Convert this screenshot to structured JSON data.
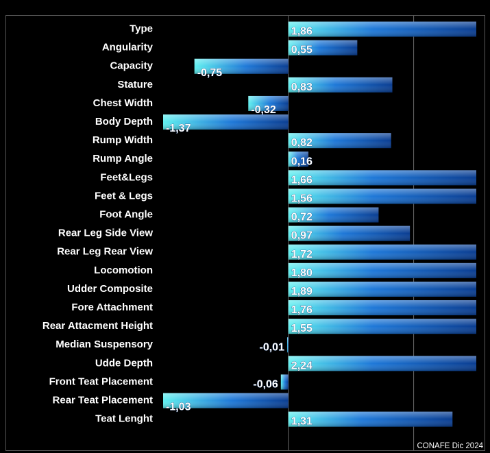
{
  "chart_data": {
    "type": "bar",
    "orientation": "horizontal",
    "categories": [
      "Type",
      "Angularity",
      "Capacity",
      "Stature",
      "Chest Width",
      "Body Depth",
      "Rump Width",
      "Rump Angle",
      "Feet&Legs",
      "Feet & Legs",
      "Foot Angle",
      "Rear Leg Side View",
      "Rear Leg Rear View",
      "Locomotion",
      "Udder Composite",
      "Fore Attachment",
      "Rear Attacment Height",
      "Median Suspensory",
      "Udde Depth",
      "Front Teat Placement",
      "Rear Teat Placement",
      "Teat Lenght"
    ],
    "values": [
      1.86,
      0.55,
      -0.75,
      0.83,
      -0.32,
      -1.37,
      0.82,
      0.16,
      1.66,
      1.56,
      0.72,
      0.97,
      1.72,
      1.8,
      1.89,
      1.76,
      1.55,
      -0.01,
      2.24,
      -0.06,
      -1.03,
      1.31
    ],
    "value_labels": [
      "1,86",
      "0,55",
      "-0,75",
      "0,83",
      "-0,32",
      "-1,37",
      "0,82",
      "0,16",
      "1,66",
      "1,56",
      "0,72",
      "0,97",
      "1,72",
      "1,80",
      "1,89",
      "1,76",
      "1,55",
      "-0,01",
      "2,24",
      "-0,06",
      "-1,03",
      "1,31"
    ],
    "xlim": [
      -1,
      1.5
    ],
    "gridlines_at": [
      1
    ],
    "grid": true,
    "legend": "none",
    "colors": {
      "bar_dark": "#0a3d91",
      "bar_mid": "#1e78d8",
      "bar_light": "#5ff0f0",
      "gridline": "#6b6b6b",
      "background": "#000000",
      "text": "#ffffff"
    }
  },
  "source_note": "CONAFE Dic 2024"
}
